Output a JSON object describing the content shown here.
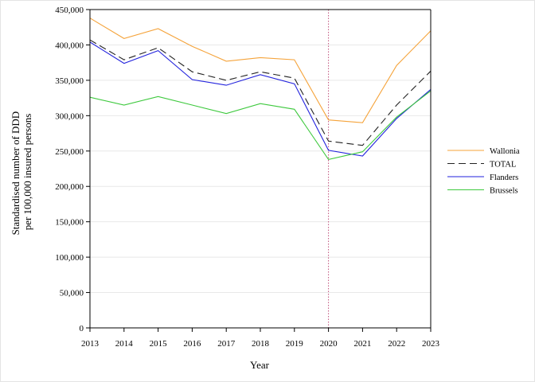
{
  "chart_data": {
    "type": "line",
    "xlabel": "Year",
    "ylabel_lines": [
      "Standardised number of DDD",
      "per 100,000 insured persons"
    ],
    "x": [
      2013,
      2014,
      2015,
      2016,
      2017,
      2018,
      2019,
      2020,
      2021,
      2022,
      2023
    ],
    "xticks": [
      "2013",
      "2014",
      "2015",
      "2016",
      "2017",
      "2018",
      "2019",
      "2020",
      "2021",
      "2022",
      "2023"
    ],
    "ylim": [
      0,
      450000
    ],
    "yticks": [
      0,
      50000,
      100000,
      150000,
      200000,
      250000,
      300000,
      350000,
      400000,
      450000
    ],
    "ytick_labels": [
      "0",
      "50,000",
      "100,000",
      "150,000",
      "200,000",
      "250,000",
      "300,000",
      "350,000",
      "400,000",
      "450,000"
    ],
    "grid": true,
    "reference_line_x": 2020,
    "legend_position": "right",
    "series": [
      {
        "name": "Wallonia",
        "color": "#f5a33a",
        "dashed": false,
        "values": [
          438000,
          409000,
          423000,
          398000,
          377000,
          382000,
          379000,
          294000,
          290000,
          371000,
          420000
        ]
      },
      {
        "name": "TOTAL",
        "color": "#222222",
        "dashed": true,
        "values": [
          407000,
          379000,
          396000,
          362000,
          350000,
          362000,
          353000,
          264000,
          258000,
          315000,
          363000
        ]
      },
      {
        "name": "Flanders",
        "color": "#2222dd",
        "dashed": false,
        "values": [
          404000,
          374000,
          392000,
          351000,
          343000,
          358000,
          345000,
          251000,
          243000,
          296000,
          337000
        ]
      },
      {
        "name": "Brussels",
        "color": "#3ec93e",
        "dashed": false,
        "values": [
          326000,
          315000,
          327000,
          315000,
          303000,
          317000,
          309000,
          238000,
          249000,
          298000,
          335000
        ]
      }
    ],
    "reference_line_color": "#c0507a"
  }
}
